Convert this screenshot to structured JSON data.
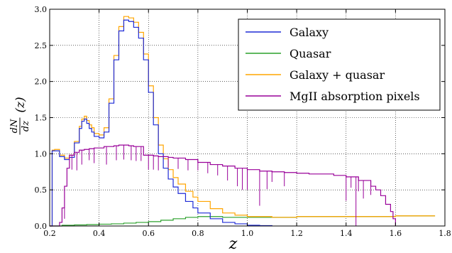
{
  "chart_data": {
    "type": "line",
    "title": "",
    "xlabel": "z",
    "ylabel": "dN/dz(z)",
    "ylabel_parts": {
      "numerator": "dN",
      "denominator": "dz",
      "argument": "(z)"
    },
    "xlim": [
      0.2,
      1.8
    ],
    "ylim": [
      0.0,
      3.0
    ],
    "xticks": [
      "0.2",
      "0.4",
      "0.6",
      "0.8",
      "1.0",
      "1.2",
      "1.4",
      "1.6",
      "1.8"
    ],
    "yticks": [
      "0.0",
      "0.5",
      "1.0",
      "1.5",
      "2.0",
      "2.5",
      "3.0"
    ],
    "grid": true,
    "legend_position": "top-right",
    "series": [
      {
        "name": "Galaxy",
        "color": "#1f2bd6",
        "x": [
          0.2,
          0.21,
          0.22,
          0.24,
          0.26,
          0.28,
          0.3,
          0.32,
          0.33,
          0.34,
          0.35,
          0.36,
          0.37,
          0.38,
          0.4,
          0.42,
          0.44,
          0.46,
          0.48,
          0.5,
          0.52,
          0.54,
          0.56,
          0.58,
          0.6,
          0.62,
          0.64,
          0.66,
          0.68,
          0.7,
          0.72,
          0.75,
          0.78,
          0.8,
          0.85,
          0.9,
          0.95,
          1.0,
          1.05,
          1.1
        ],
        "y": [
          0.0,
          1.04,
          1.04,
          0.96,
          0.92,
          0.95,
          1.15,
          1.35,
          1.45,
          1.48,
          1.42,
          1.35,
          1.3,
          1.24,
          1.22,
          1.3,
          1.7,
          2.3,
          2.7,
          2.85,
          2.83,
          2.75,
          2.6,
          2.3,
          1.85,
          1.4,
          1.0,
          0.8,
          0.65,
          0.54,
          0.45,
          0.34,
          0.25,
          0.18,
          0.1,
          0.05,
          0.03,
          0.01,
          0.005,
          0.0
        ]
      },
      {
        "name": "Quasar",
        "color": "#2ca02c",
        "x": [
          0.2,
          0.25,
          0.3,
          0.35,
          0.4,
          0.45,
          0.5,
          0.55,
          0.6,
          0.65,
          0.7,
          0.75,
          0.8,
          0.85,
          0.9,
          0.95,
          1.0,
          1.1,
          1.2,
          1.3,
          1.4,
          1.5,
          1.6,
          1.7,
          1.76
        ],
        "y": [
          0.0,
          0.01,
          0.015,
          0.02,
          0.025,
          0.03,
          0.04,
          0.05,
          0.06,
          0.08,
          0.1,
          0.12,
          0.13,
          0.13,
          0.12,
          0.12,
          0.12,
          0.12,
          0.13,
          0.13,
          0.13,
          0.13,
          0.14,
          0.14,
          0.14
        ]
      },
      {
        "name": "Galaxy + quasar",
        "color": "#ffa500",
        "x": [
          0.2,
          0.21,
          0.22,
          0.24,
          0.26,
          0.28,
          0.3,
          0.32,
          0.33,
          0.34,
          0.35,
          0.36,
          0.37,
          0.38,
          0.4,
          0.42,
          0.44,
          0.46,
          0.48,
          0.5,
          0.52,
          0.54,
          0.56,
          0.58,
          0.6,
          0.62,
          0.64,
          0.66,
          0.68,
          0.7,
          0.72,
          0.75,
          0.78,
          0.8,
          0.85,
          0.9,
          0.95,
          1.0,
          1.1,
          1.2,
          1.3,
          1.4,
          1.5,
          1.6,
          1.7,
          1.76
        ],
        "y": [
          0.0,
          1.05,
          1.06,
          0.98,
          0.94,
          0.98,
          1.17,
          1.38,
          1.48,
          1.52,
          1.46,
          1.4,
          1.36,
          1.28,
          1.26,
          1.36,
          1.76,
          2.36,
          2.76,
          2.9,
          2.88,
          2.82,
          2.68,
          2.38,
          1.94,
          1.5,
          1.12,
          0.93,
          0.78,
          0.67,
          0.58,
          0.48,
          0.4,
          0.34,
          0.24,
          0.18,
          0.15,
          0.13,
          0.12,
          0.13,
          0.13,
          0.13,
          0.13,
          0.14,
          0.14,
          0.14
        ]
      },
      {
        "name": "MgII absorption pixels",
        "color": "#990099",
        "x": [
          0.2,
          0.215,
          0.225,
          0.24,
          0.25,
          0.26,
          0.27,
          0.28,
          0.3,
          0.32,
          0.34,
          0.36,
          0.38,
          0.4,
          0.42,
          0.44,
          0.46,
          0.48,
          0.5,
          0.52,
          0.54,
          0.56,
          0.58,
          0.6,
          0.62,
          0.64,
          0.66,
          0.68,
          0.7,
          0.75,
          0.8,
          0.85,
          0.9,
          0.95,
          1.0,
          1.05,
          1.1,
          1.15,
          1.2,
          1.25,
          1.3,
          1.35,
          1.4,
          1.45,
          1.5,
          1.52,
          1.54,
          1.56,
          1.58,
          1.59,
          1.6
        ],
        "y": [
          0.0,
          0.0,
          0.0,
          0.05,
          0.25,
          0.55,
          0.8,
          0.98,
          1.02,
          1.05,
          1.06,
          1.07,
          1.08,
          1.08,
          1.1,
          1.1,
          1.11,
          1.12,
          1.12,
          1.11,
          1.1,
          1.1,
          0.98,
          0.98,
          0.97,
          0.96,
          0.96,
          0.95,
          0.94,
          0.92,
          0.88,
          0.85,
          0.83,
          0.8,
          0.78,
          0.76,
          0.75,
          0.74,
          0.73,
          0.72,
          0.72,
          0.7,
          0.68,
          0.63,
          0.55,
          0.5,
          0.42,
          0.3,
          0.2,
          0.1,
          0.0
        ]
      }
    ],
    "spikes": [
      {
        "series": "MgII absorption pixels",
        "x": [
          0.26,
          0.29,
          0.31,
          0.33,
          0.36,
          0.38,
          0.43,
          0.47,
          0.5,
          0.53,
          0.55,
          0.57,
          0.6,
          0.62,
          0.64,
          0.68,
          0.72,
          0.76,
          0.8,
          0.84,
          0.88,
          0.92,
          0.96,
          0.98,
          1.0,
          1.05,
          1.08,
          1.1,
          1.15,
          1.4,
          1.42,
          1.44,
          1.45,
          1.47,
          1.5
        ],
        "depth": [
          0.15,
          0.2,
          0.25,
          0.2,
          0.15,
          0.2,
          0.25,
          0.2,
          0.2,
          0.2,
          0.2,
          0.2,
          0.2,
          0.2,
          0.2,
          0.15,
          0.15,
          0.15,
          0.15,
          0.15,
          0.15,
          0.2,
          0.25,
          0.3,
          0.3,
          0.5,
          0.25,
          0.15,
          0.2,
          0.35,
          0.15,
          0.7,
          0.2,
          0.25,
          0.2
        ]
      }
    ]
  }
}
